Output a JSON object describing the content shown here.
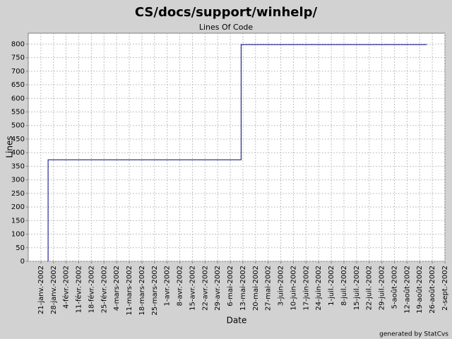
{
  "chart_data": {
    "type": "line",
    "title": "CS/docs/support/winhelp/",
    "subtitle": "Lines Of Code",
    "x_label": "Date",
    "y_label": "Lines",
    "footer": "generated by StatCvs",
    "x": [
      "2002-01-25",
      "2002-01-25",
      "2002-05-12",
      "2002-05-12",
      "2002-08-23"
    ],
    "series": [
      {
        "name": "Lines",
        "color": "#000080",
        "values": [
          0,
          374,
          374,
          798,
          798
        ]
      }
    ],
    "xlim": [
      "2002-01-14",
      "2002-09-02"
    ],
    "xticks": [
      {
        "value": "2002-01-21",
        "label": "21-janv.-2002"
      },
      {
        "value": "2002-01-28",
        "label": "28-janv.-2002"
      },
      {
        "value": "2002-02-04",
        "label": "4-févr.-2002"
      },
      {
        "value": "2002-02-11",
        "label": "11-févr.-2002"
      },
      {
        "value": "2002-02-18",
        "label": "18-févr.-2002"
      },
      {
        "value": "2002-02-25",
        "label": "25-févr.-2002"
      },
      {
        "value": "2002-03-04",
        "label": "4-mars-2002"
      },
      {
        "value": "2002-03-11",
        "label": "11-mars-2002"
      },
      {
        "value": "2002-03-18",
        "label": "18-mars-2002"
      },
      {
        "value": "2002-03-25",
        "label": "25-mars-2002"
      },
      {
        "value": "2002-04-01",
        "label": "1-avr.-2002"
      },
      {
        "value": "2002-04-08",
        "label": "8-avr.-2002"
      },
      {
        "value": "2002-04-15",
        "label": "15-avr.-2002"
      },
      {
        "value": "2002-04-22",
        "label": "22-avr.-2002"
      },
      {
        "value": "2002-04-29",
        "label": "29-avr.-2002"
      },
      {
        "value": "2002-05-06",
        "label": "6-mai-2002"
      },
      {
        "value": "2002-05-13",
        "label": "13-mai-2002"
      },
      {
        "value": "2002-05-20",
        "label": "20-mai-2002"
      },
      {
        "value": "2002-05-27",
        "label": "27-mai-2002"
      },
      {
        "value": "2002-06-03",
        "label": "3-juin-2002"
      },
      {
        "value": "2002-06-10",
        "label": "10-juin-2002"
      },
      {
        "value": "2002-06-17",
        "label": "17-juin-2002"
      },
      {
        "value": "2002-06-24",
        "label": "24-juin-2002"
      },
      {
        "value": "2002-07-01",
        "label": "1-juil.-2002"
      },
      {
        "value": "2002-07-08",
        "label": "8-juil.-2002"
      },
      {
        "value": "2002-07-15",
        "label": "15-juil.-2002"
      },
      {
        "value": "2002-07-22",
        "label": "22-juil.-2002"
      },
      {
        "value": "2002-07-29",
        "label": "29-juil.-2002"
      },
      {
        "value": "2002-08-05",
        "label": "5-août-2002"
      },
      {
        "value": "2002-08-12",
        "label": "12-août-2002"
      },
      {
        "value": "2002-08-19",
        "label": "19-août-2002"
      },
      {
        "value": "2002-08-26",
        "label": "26-août-2002"
      },
      {
        "value": "2002-09-02",
        "label": "2-sept.-2002"
      }
    ],
    "ylim": [
      0,
      840
    ],
    "yticks": [
      0,
      50,
      100,
      150,
      200,
      250,
      300,
      350,
      400,
      450,
      500,
      550,
      600,
      650,
      700,
      750,
      800
    ],
    "grid": true
  }
}
